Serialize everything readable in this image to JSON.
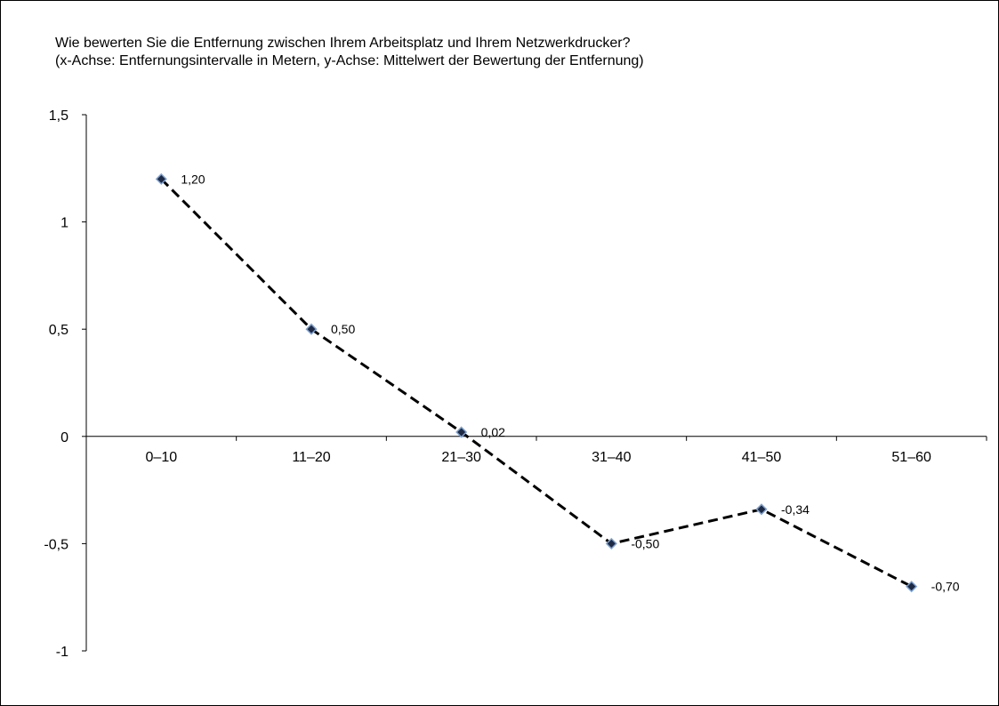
{
  "chart_data": {
    "type": "line",
    "title": "Wie bewerten Sie die Entfernung zwischen Ihrem Arbeitsplatz und Ihrem Netzwerkdrucker?",
    "subtitle": "(x-Achse: Entfernungsintervalle in Metern, y-Achse: Mittelwert der Bewertung der Entfernung)",
    "categories": [
      "0–10",
      "11–20",
      "21–30",
      "31–40",
      "41–50",
      "51–60"
    ],
    "values": [
      1.2,
      0.5,
      0.02,
      -0.5,
      -0.34,
      -0.7
    ],
    "data_labels": [
      "1,20",
      "0,50",
      "0,02",
      "-0,50",
      "-0,34",
      "-0,70"
    ],
    "y_ticks": [
      -1,
      -0.5,
      0,
      0.5,
      1,
      1.5
    ],
    "y_tick_labels": [
      "-1",
      "-0,5",
      "0",
      "0,5",
      "1",
      "1,5"
    ],
    "ylim": [
      -1,
      1.5
    ],
    "grid": false,
    "line_style": "dashed",
    "marker": "diamond",
    "colors": {
      "line": "#000000",
      "marker_fill": "#1f2a44",
      "marker_edge": "#7fa2d0"
    }
  }
}
